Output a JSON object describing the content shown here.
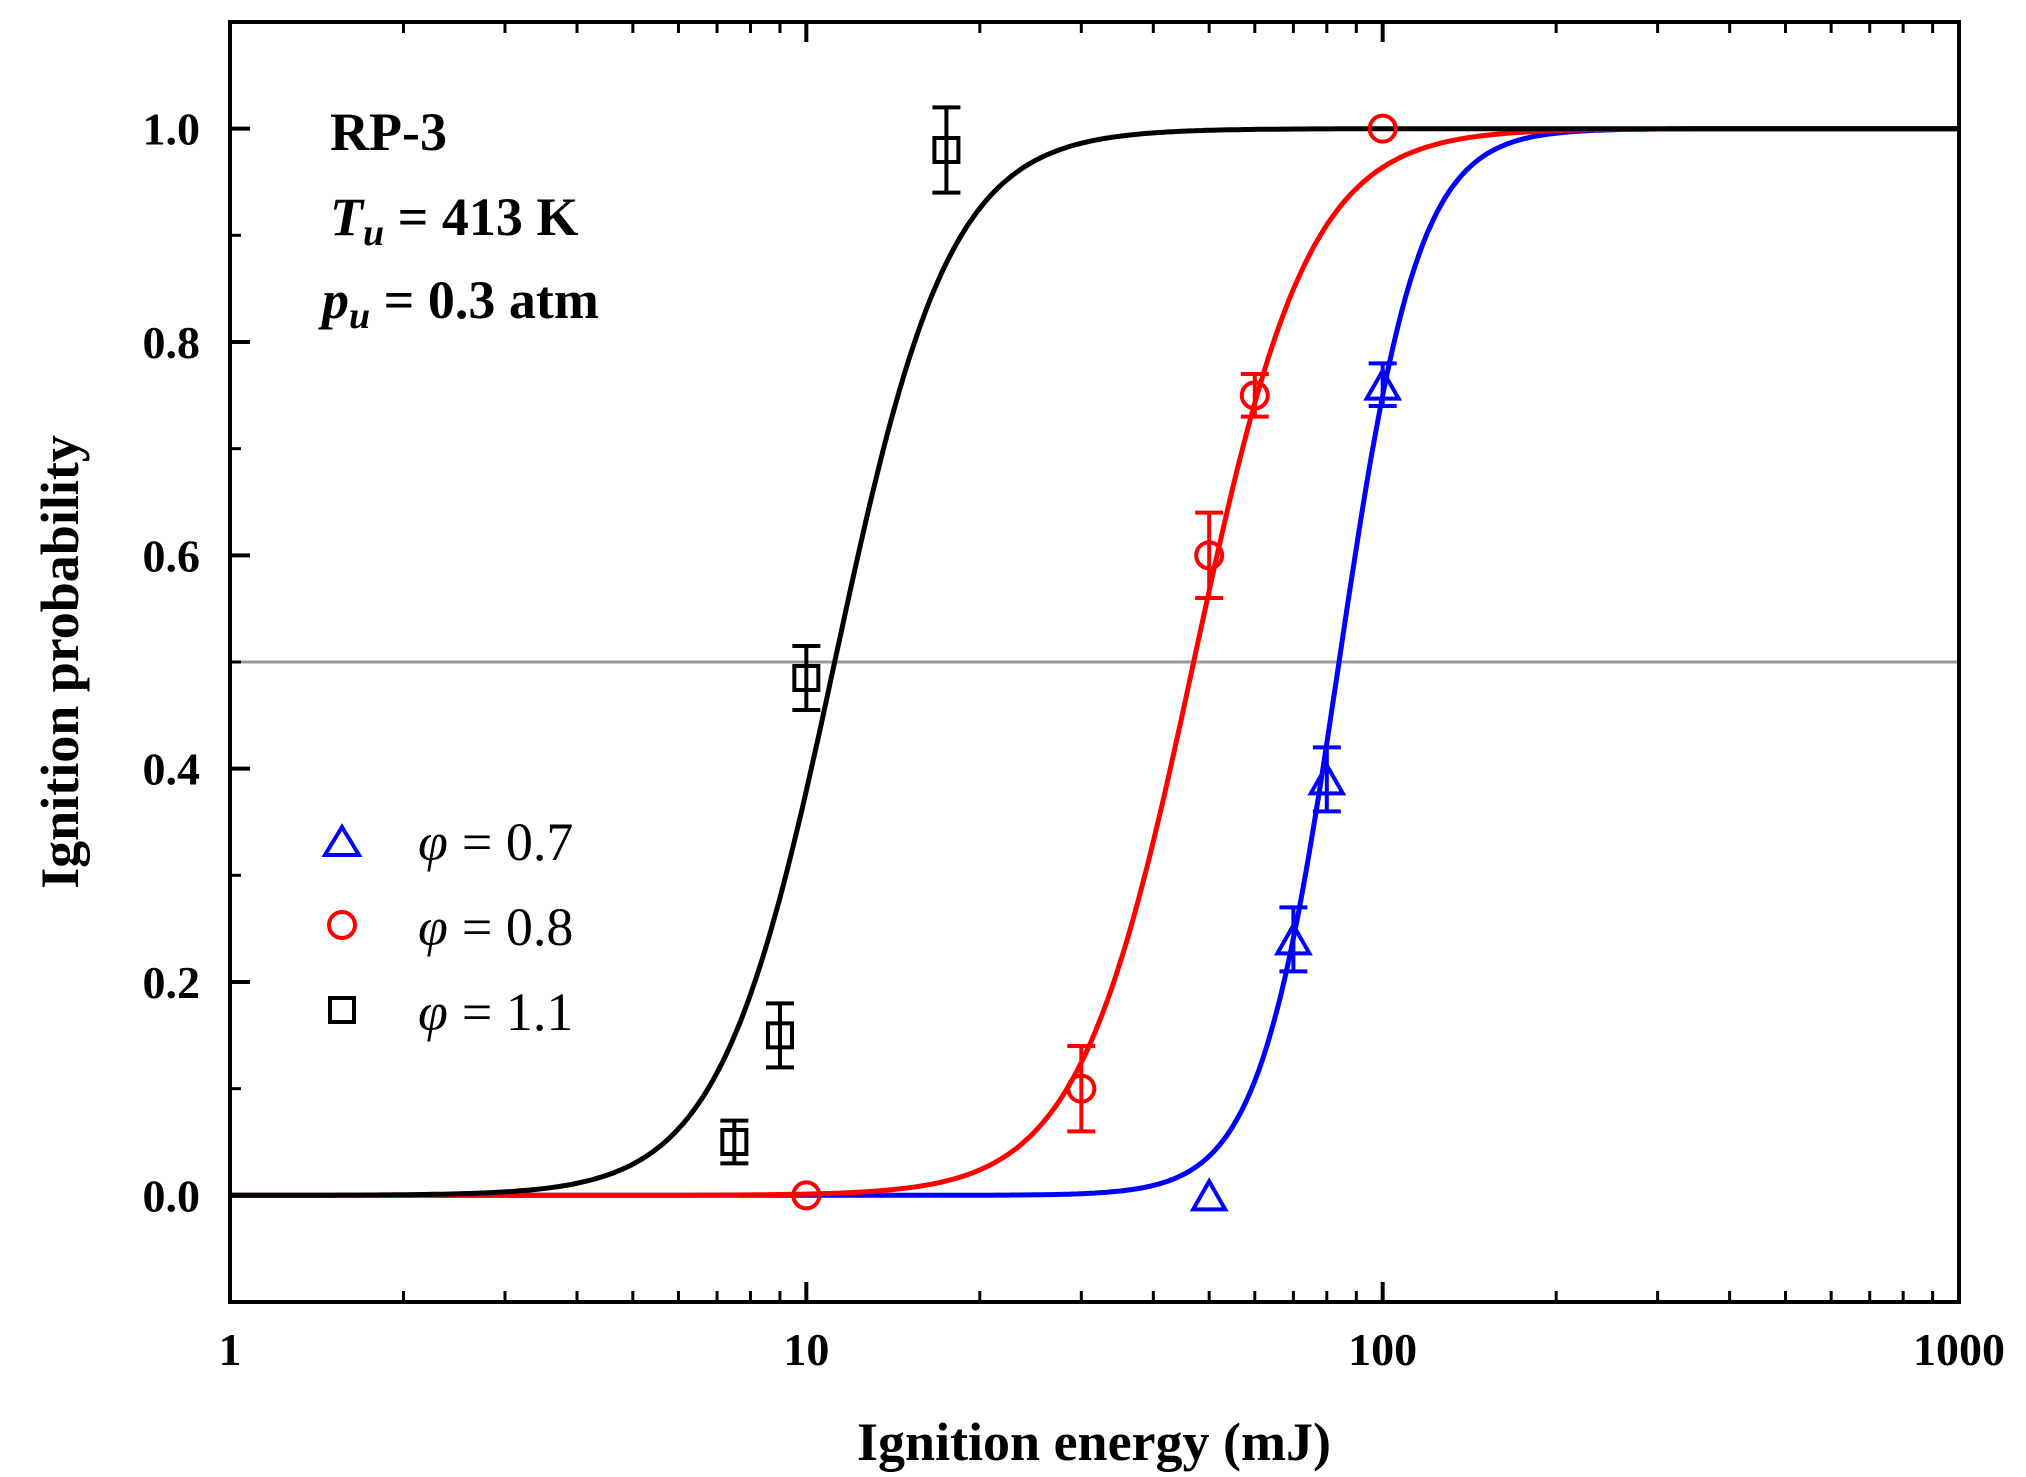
{
  "chart_data": {
    "type": "scatter",
    "title": "",
    "xlabel": "Ignition energy (mJ)",
    "ylabel": "Ignition probability",
    "xscale": "log",
    "xlim": [
      1,
      1000
    ],
    "ylim": [
      -0.1,
      1.1
    ],
    "x_ticks": [
      1,
      10,
      100,
      1000
    ],
    "x_tick_labels": [
      "1",
      "10",
      "100",
      "1000"
    ],
    "y_ticks": [
      0.0,
      0.2,
      0.4,
      0.6,
      0.8,
      1.0
    ],
    "y_tick_labels": [
      "0.0",
      "0.2",
      "0.4",
      "0.6",
      "0.8",
      "1.0"
    ],
    "reference_line": {
      "y": 0.5,
      "color": "#999999"
    },
    "annotations": [
      {
        "text": "RP-3"
      },
      {
        "symbol": "T",
        "subscript": "u",
        "text": " = 413 K"
      },
      {
        "symbol": "p",
        "subscript": "u",
        "text": " = 0.3 atm"
      }
    ],
    "legend_position": "left-middle",
    "series": [
      {
        "name": "= 0.7",
        "phi_symbol": "φ",
        "marker": "triangle",
        "color": "#0000ff",
        "points": [
          {
            "x": 50,
            "y": 0.0
          },
          {
            "x": 70,
            "y": 0.24,
            "err": 0.03
          },
          {
            "x": 80,
            "y": 0.39,
            "err": 0.03
          },
          {
            "x": 100,
            "y": 0.76,
            "err": 0.02
          }
        ],
        "fit": {
          "x50": 84,
          "k": 14.5
        }
      },
      {
        "name": "= 0.8",
        "phi_symbol": "φ",
        "marker": "circle",
        "color": "#ff0000",
        "points": [
          {
            "x": 10,
            "y": 0.0
          },
          {
            "x": 30,
            "y": 0.1,
            "err": 0.04
          },
          {
            "x": 50,
            "y": 0.6,
            "err": 0.04
          },
          {
            "x": 60,
            "y": 0.75,
            "err": 0.02
          },
          {
            "x": 100,
            "y": 1.0
          }
        ],
        "fit": {
          "x50": 47,
          "k": 10.0
        }
      },
      {
        "name": "= 1.1",
        "phi_symbol": "φ",
        "marker": "square",
        "color": "#000000",
        "points": [
          {
            "x": 7.5,
            "y": 0.05,
            "err": 0.02
          },
          {
            "x": 9,
            "y": 0.15,
            "err": 0.03
          },
          {
            "x": 10,
            "y": 0.485,
            "err": 0.03
          },
          {
            "x": 17.5,
            "y": 0.98,
            "err": 0.04
          }
        ],
        "fit": {
          "x50": 11.2,
          "k": 10.0
        }
      }
    ]
  }
}
